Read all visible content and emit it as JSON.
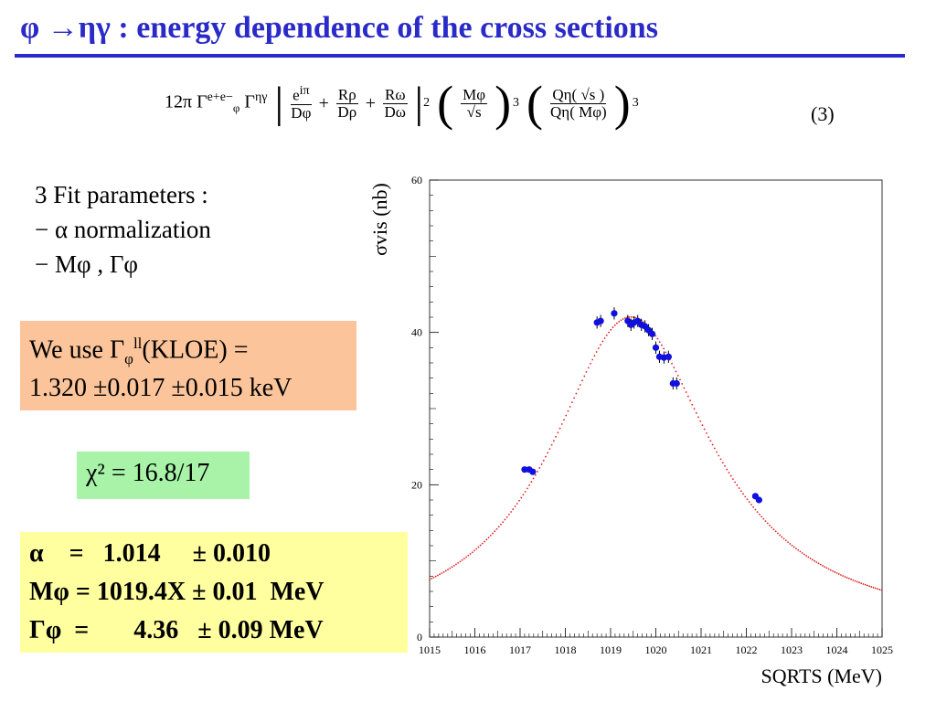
{
  "title": "φ →ηγ : energy dependence of the cross sections",
  "formula": {
    "prefix": "12π Γ",
    "gamma_ee_sup": "e+e−",
    "gamma_phi_sub": "φ",
    "gamma2": "Γ",
    "gamma_etag_sup": "ηγ",
    "t1_num": "e",
    "t1_num_sup": "iπ",
    "t1_den": "Dφ",
    "t2_num": "Rρ",
    "t2_den": "Dρ",
    "t3_num": "Rω",
    "t3_den": "Dω",
    "exp2": "2",
    "m_num": "Mφ",
    "m_den": "√s",
    "exp3a": "3",
    "q_num": "Qη( √s )",
    "q_den": "Qη( Mφ)",
    "exp3b": "3",
    "eqnum": "(3)"
  },
  "fit": {
    "line1": "3 Fit parameters :",
    "line2": "− α normalization",
    "line3": "−  Mφ , Γφ"
  },
  "kloe_box": {
    "line1_a": "We use Γ",
    "line1_sub": "φ",
    "line1_sup": "ll",
    "line1_b": "(KLOE)  =",
    "line2": "1.320 ±0.017 ±0.015 keV"
  },
  "chi2": "χ² = 16.8/17",
  "results": {
    "alpha": "α    =   1.014     ± 0.010",
    "mphi": "Mφ = 1019.4X ± 0.01  MeV",
    "gphi": "Γφ  =       4.36   ± 0.09 MeV"
  },
  "colors": {
    "title": "#2a2ac8",
    "points": "#1010e0",
    "fit_curve": "#e02020"
  },
  "chart_data": {
    "type": "scatter",
    "xlabel": "SQRTS (MeV)",
    "ylabel": "σvis (nb)",
    "xlim": [
      1015,
      1025
    ],
    "ylim": [
      0,
      60
    ],
    "xticks": [
      "1015",
      "1016",
      "1017",
      "1018",
      "1019",
      "1020",
      "1021",
      "1022",
      "1023",
      "1024",
      "1025"
    ],
    "yticks": [
      "0",
      "20",
      "40",
      "60"
    ],
    "series": [
      {
        "points": [
          {
            "x": 1017.1,
            "y": 22.0,
            "err": 0.3
          },
          {
            "x": 1017.2,
            "y": 22.0,
            "err": 0.3
          },
          {
            "x": 1017.28,
            "y": 21.7,
            "err": 0.3
          },
          {
            "x": 1018.7,
            "y": 41.3,
            "err": 0.8
          },
          {
            "x": 1018.78,
            "y": 41.5,
            "err": 0.8
          },
          {
            "x": 1019.08,
            "y": 42.5,
            "err": 0.8
          },
          {
            "x": 1019.38,
            "y": 41.5,
            "err": 0.8
          },
          {
            "x": 1019.45,
            "y": 41.0,
            "err": 0.8
          },
          {
            "x": 1019.52,
            "y": 41.3,
            "err": 0.8
          },
          {
            "x": 1019.6,
            "y": 41.5,
            "err": 0.8
          },
          {
            "x": 1019.68,
            "y": 41.0,
            "err": 0.8
          },
          {
            "x": 1019.76,
            "y": 40.8,
            "err": 0.8
          },
          {
            "x": 1019.84,
            "y": 40.3,
            "err": 0.8
          },
          {
            "x": 1019.92,
            "y": 39.8,
            "err": 0.8
          },
          {
            "x": 1020.0,
            "y": 38.0,
            "err": 0.8
          },
          {
            "x": 1020.08,
            "y": 36.8,
            "err": 0.8
          },
          {
            "x": 1020.18,
            "y": 36.7,
            "err": 0.8
          },
          {
            "x": 1020.28,
            "y": 36.8,
            "err": 0.8
          },
          {
            "x": 1020.38,
            "y": 33.3,
            "err": 0.8
          },
          {
            "x": 1020.46,
            "y": 33.3,
            "err": 0.8
          },
          {
            "x": 1022.2,
            "y": 18.5,
            "err": 0.4
          },
          {
            "x": 1022.28,
            "y": 18.0,
            "err": 0.4
          }
        ]
      },
      {
        "style": "dotted-fit",
        "peak_x": 1019.4,
        "width": 4.36,
        "peak_y": 42.0,
        "x_range": [
          1015,
          1025
        ]
      }
    ]
  }
}
